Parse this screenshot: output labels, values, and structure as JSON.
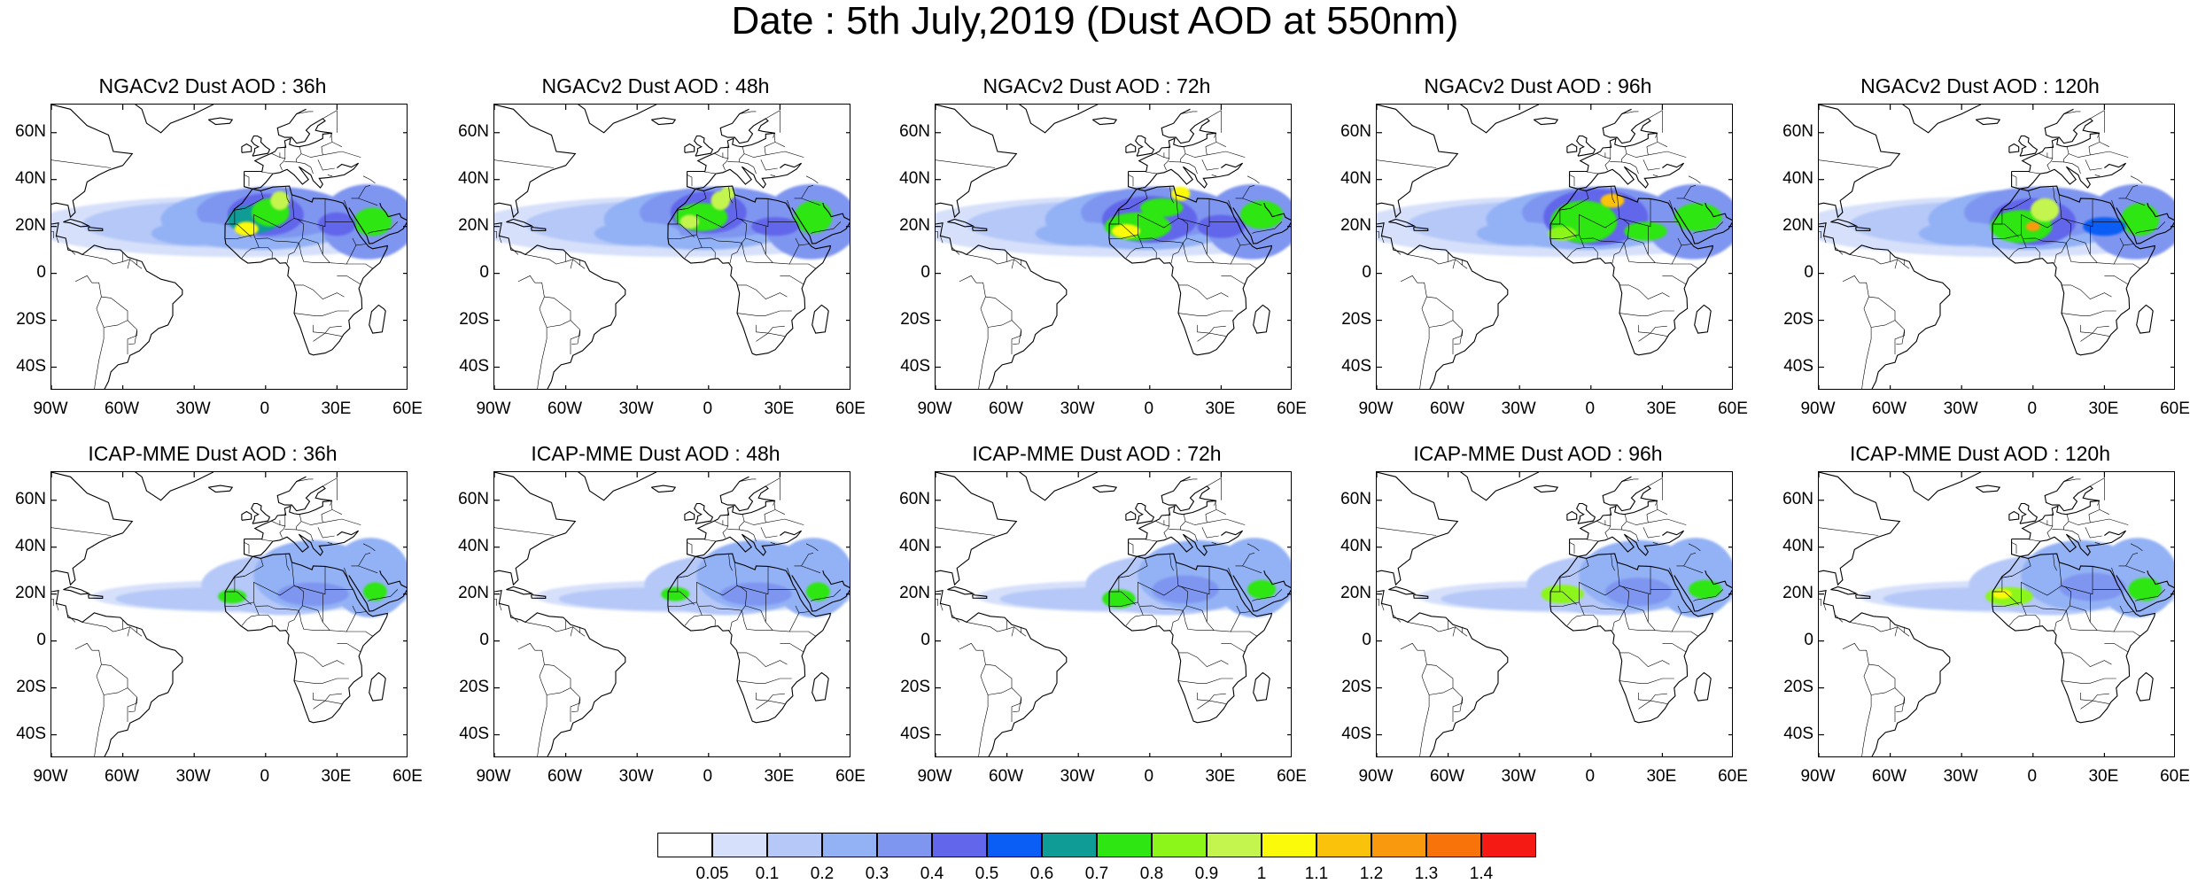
{
  "title": "Date : 5th July,2019 (Dust AOD at 550nm)",
  "lat_labels": [
    "60N",
    "40N",
    "20N",
    "0",
    "20S",
    "40S"
  ],
  "lon_labels": [
    "90W",
    "60W",
    "30W",
    "0",
    "30E",
    "60E"
  ],
  "panels": [
    {
      "title": "NGACv2 Dust AOD : 36h"
    },
    {
      "title": "NGACv2 Dust AOD : 48h"
    },
    {
      "title": "NGACv2 Dust AOD : 72h"
    },
    {
      "title": "NGACv2 Dust AOD : 96h"
    },
    {
      "title": "NGACv2 Dust AOD : 120h"
    },
    {
      "title": "ICAP-MME Dust AOD : 36h"
    },
    {
      "title": "ICAP-MME Dust AOD : 48h"
    },
    {
      "title": "ICAP-MME Dust AOD : 72h"
    },
    {
      "title": "ICAP-MME Dust AOD : 96h"
    },
    {
      "title": "ICAP-MME Dust AOD : 120h"
    }
  ],
  "colorbar": {
    "labels": [
      "0.05",
      "0.1",
      "0.2",
      "0.3",
      "0.4",
      "0.5",
      "0.6",
      "0.7",
      "0.8",
      "0.9",
      "1",
      "1.1",
      "1.2",
      "1.3",
      "1.4"
    ],
    "colors": [
      "#ffffff",
      "#d6e0fa",
      "#b5c8f8",
      "#93b2f5",
      "#7f96f0",
      "#6266eb",
      "#0b5ef5",
      "#0f9c96",
      "#2de612",
      "#8cf51a",
      "#c4f54e",
      "#fafa0a",
      "#fbc20c",
      "#f99a0e",
      "#f9730b",
      "#f51b14"
    ]
  }
}
